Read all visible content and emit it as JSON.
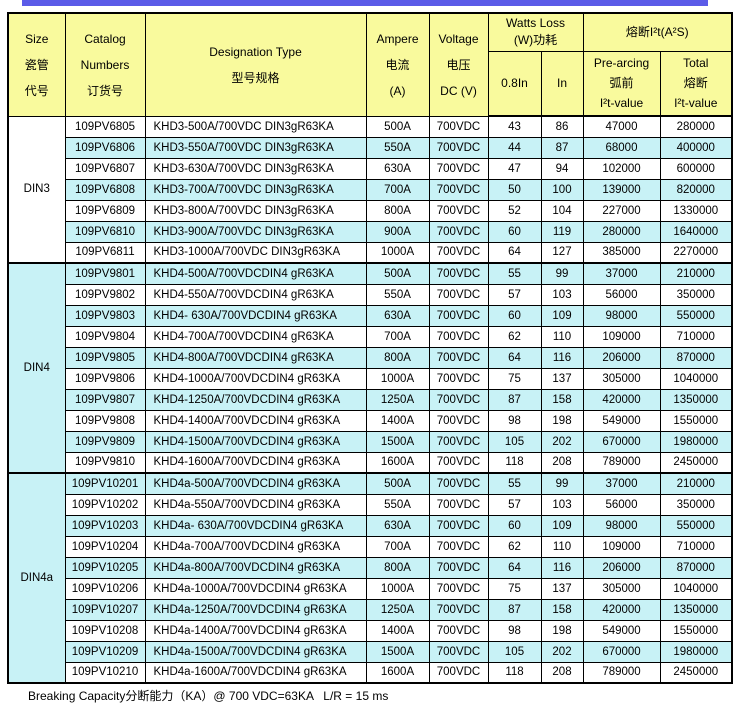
{
  "colors": {
    "accent_bar": "#5b5be8",
    "header_bg": "#f9fa9d",
    "stripe_bg": "#c8f2f6",
    "row_bg": "#ffffff",
    "border": "#000000"
  },
  "header": {
    "size": [
      "Size",
      "瓷管",
      "代号"
    ],
    "catalog": [
      "Catalog",
      "Numbers",
      "订货号"
    ],
    "designation": [
      "Designation Type",
      "型号规格"
    ],
    "ampere": [
      "Ampere",
      "电流",
      "(A)"
    ],
    "voltage": [
      "Voltage",
      "电压",
      "DC (V)"
    ],
    "watts_loss": [
      "Watts Loss",
      "(W)功耗"
    ],
    "i2t_group": "熔断I²t(A²S)",
    "w08": "0.8In",
    "win": "In",
    "prearcing": [
      "Pre-arcing",
      "弧前",
      "I²t-value"
    ],
    "total": [
      "Total",
      "熔断",
      "I²t-value"
    ]
  },
  "groups": [
    {
      "size": "DIN3",
      "rows": [
        {
          "catalog": "109PV6805",
          "designation": "KHD3-500A/700VDC DIN3gR63KA",
          "ampere": "500A",
          "voltage": "700VDC",
          "w08": "43",
          "win": "86",
          "prearcing": "47000",
          "total": "280000"
        },
        {
          "catalog": "109PV6806",
          "designation": "KHD3-550A/700VDC DIN3gR63KA",
          "ampere": "550A",
          "voltage": "700VDC",
          "w08": "44",
          "win": "87",
          "prearcing": "68000",
          "total": "400000"
        },
        {
          "catalog": "109PV6807",
          "designation": "KHD3-630A/700VDC DIN3gR63KA",
          "ampere": "630A",
          "voltage": "700VDC",
          "w08": "47",
          "win": "94",
          "prearcing": "102000",
          "total": "600000"
        },
        {
          "catalog": "109PV6808",
          "designation": "KHD3-700A/700VDC DIN3gR63KA",
          "ampere": "700A",
          "voltage": "700VDC",
          "w08": "50",
          "win": "100",
          "prearcing": "139000",
          "total": "820000"
        },
        {
          "catalog": "109PV6809",
          "designation": "KHD3-800A/700VDC DIN3gR63KA",
          "ampere": "800A",
          "voltage": "700VDC",
          "w08": "52",
          "win": "104",
          "prearcing": "227000",
          "total": "1330000"
        },
        {
          "catalog": "109PV6810",
          "designation": "KHD3-900A/700VDC DIN3gR63KA",
          "ampere": "900A",
          "voltage": "700VDC",
          "w08": "60",
          "win": "119",
          "prearcing": "280000",
          "total": "1640000"
        },
        {
          "catalog": "109PV6811",
          "designation": "KHD3-1000A/700VDC DIN3gR63KA",
          "ampere": "1000A",
          "voltage": "700VDC",
          "w08": "64",
          "win": "127",
          "prearcing": "385000",
          "total": "2270000"
        }
      ]
    },
    {
      "size": "DIN4",
      "rows": [
        {
          "catalog": "109PV9801",
          "designation": "KHD4-500A/700VDCDIN4 gR63KA",
          "ampere": "500A",
          "voltage": "700VDC",
          "w08": "55",
          "win": "99",
          "prearcing": "37000",
          "total": "210000"
        },
        {
          "catalog": "109PV9802",
          "designation": "KHD4-550A/700VDCDIN4 gR63KA",
          "ampere": "550A",
          "voltage": "700VDC",
          "w08": "57",
          "win": "103",
          "prearcing": "56000",
          "total": "350000"
        },
        {
          "catalog": "109PV9803",
          "designation": "KHD4- 630A/700VDCDIN4 gR63KA",
          "ampere": "630A",
          "voltage": "700VDC",
          "w08": "60",
          "win": "109",
          "prearcing": "98000",
          "total": "550000"
        },
        {
          "catalog": "109PV9804",
          "designation": "KHD4-700A/700VDCDIN4 gR63KA",
          "ampere": "700A",
          "voltage": "700VDC",
          "w08": "62",
          "win": "110",
          "prearcing": "109000",
          "total": "710000"
        },
        {
          "catalog": "109PV9805",
          "designation": "KHD4-800A/700VDCDIN4 gR63KA",
          "ampere": "800A",
          "voltage": "700VDC",
          "w08": "64",
          "win": "116",
          "prearcing": "206000",
          "total": "870000"
        },
        {
          "catalog": "109PV9806",
          "designation": "KHD4-1000A/700VDCDIN4 gR63KA",
          "ampere": "1000A",
          "voltage": "700VDC",
          "w08": "75",
          "win": "137",
          "prearcing": "305000",
          "total": "1040000"
        },
        {
          "catalog": "109PV9807",
          "designation": "KHD4-1250A/700VDCDIN4 gR63KA",
          "ampere": "1250A",
          "voltage": "700VDC",
          "w08": "87",
          "win": "158",
          "prearcing": "420000",
          "total": "1350000"
        },
        {
          "catalog": "109PV9808",
          "designation": "KHD4-1400A/700VDCDIN4 gR63KA",
          "ampere": "1400A",
          "voltage": "700VDC",
          "w08": "98",
          "win": "198",
          "prearcing": "549000",
          "total": "1550000"
        },
        {
          "catalog": "109PV9809",
          "designation": "KHD4-1500A/700VDCDIN4 gR63KA",
          "ampere": "1500A",
          "voltage": "700VDC",
          "w08": "105",
          "win": "202",
          "prearcing": "670000",
          "total": "1980000"
        },
        {
          "catalog": "109PV9810",
          "designation": "KHD4-1600A/700VDCDIN4 gR63KA",
          "ampere": "1600A",
          "voltage": "700VDC",
          "w08": "118",
          "win": "208",
          "prearcing": "789000",
          "total": "2450000"
        }
      ]
    },
    {
      "size": "DIN4a",
      "rows": [
        {
          "catalog": "109PV10201",
          "designation": "KHD4a-500A/700VDCDIN4 gR63KA",
          "ampere": "500A",
          "voltage": "700VDC",
          "w08": "55",
          "win": "99",
          "prearcing": "37000",
          "total": "210000"
        },
        {
          "catalog": "109PV10202",
          "designation": "KHD4a-550A/700VDCDIN4 gR63KA",
          "ampere": "550A",
          "voltage": "700VDC",
          "w08": "57",
          "win": "103",
          "prearcing": "56000",
          "total": "350000"
        },
        {
          "catalog": "109PV10203",
          "designation": "KHD4a- 630A/700VDCDIN4 gR63KA",
          "ampere": "630A",
          "voltage": "700VDC",
          "w08": "60",
          "win": "109",
          "prearcing": "98000",
          "total": "550000"
        },
        {
          "catalog": "109PV10204",
          "designation": "KHD4a-700A/700VDCDIN4 gR63KA",
          "ampere": "700A",
          "voltage": "700VDC",
          "w08": "62",
          "win": "110",
          "prearcing": "109000",
          "total": "710000"
        },
        {
          "catalog": "109PV10205",
          "designation": "KHD4a-800A/700VDCDIN4 gR63KA",
          "ampere": "800A",
          "voltage": "700VDC",
          "w08": "64",
          "win": "116",
          "prearcing": "206000",
          "total": "870000"
        },
        {
          "catalog": "109PV10206",
          "designation": "KHD4a-1000A/700VDCDIN4 gR63KA",
          "ampere": "1000A",
          "voltage": "700VDC",
          "w08": "75",
          "win": "137",
          "prearcing": "305000",
          "total": "1040000"
        },
        {
          "catalog": "109PV10207",
          "designation": "KHD4a-1250A/700VDCDIN4 gR63KA",
          "ampere": "1250A",
          "voltage": "700VDC",
          "w08": "87",
          "win": "158",
          "prearcing": "420000",
          "total": "1350000"
        },
        {
          "catalog": "109PV10208",
          "designation": "KHD4a-1400A/700VDCDIN4 gR63KA",
          "ampere": "1400A",
          "voltage": "700VDC",
          "w08": "98",
          "win": "198",
          "prearcing": "549000",
          "total": "1550000"
        },
        {
          "catalog": "109PV10209",
          "designation": "KHD4a-1500A/700VDCDIN4 gR63KA",
          "ampere": "1500A",
          "voltage": "700VDC",
          "w08": "105",
          "win": "202",
          "prearcing": "670000",
          "total": "1980000"
        },
        {
          "catalog": "109PV10210",
          "designation": "KHD4a-1600A/700VDCDIN4 gR63KA",
          "ampere": "1600A",
          "voltage": "700VDC",
          "w08": "118",
          "win": "208",
          "prearcing": "789000",
          "total": "2450000"
        }
      ]
    }
  ],
  "footer": {
    "note": "Breaking Capacity分断能力（KA）@ 700 VDC=63KA   L/R = 15 ms"
  }
}
